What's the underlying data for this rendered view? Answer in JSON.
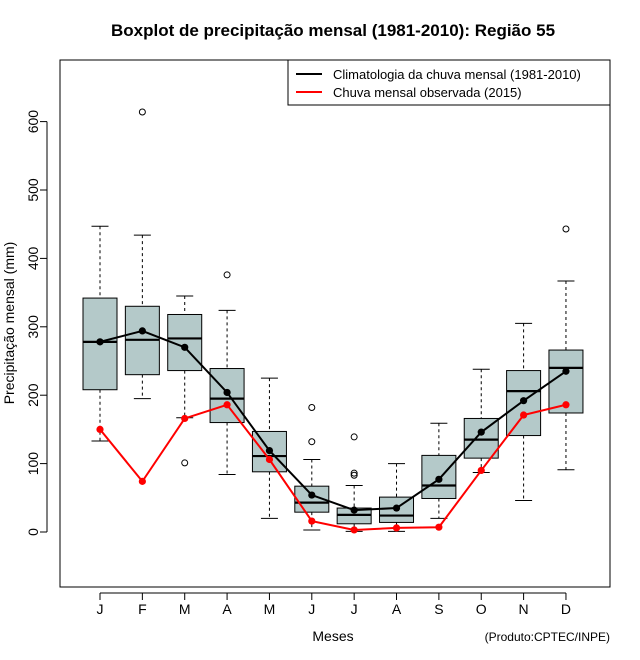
{
  "chart_data": {
    "type": "boxplot",
    "title": "Boxplot de precipitação mensal (1981-2010): Região 55",
    "xlabel": "Meses",
    "ylabel": "Precipitação mensal (mm)",
    "credit": "(Produto:CPTEC/INPE)",
    "ylim": [
      -80,
      690
    ],
    "yticks": [
      0,
      100,
      200,
      300,
      400,
      500,
      600
    ],
    "categories": [
      "J",
      "F",
      "M",
      "A",
      "M",
      "J",
      "J",
      "A",
      "S",
      "O",
      "N",
      "D"
    ],
    "boxes": [
      {
        "whisker_low": 133,
        "q1": 208,
        "median": 278,
        "q3": 342,
        "whisker_high": 447,
        "outliers": []
      },
      {
        "whisker_low": 195,
        "q1": 230,
        "median": 281,
        "q3": 330,
        "whisker_high": 434,
        "outliers": [
          614
        ]
      },
      {
        "whisker_low": 167,
        "q1": 236,
        "median": 283,
        "q3": 318,
        "whisker_high": 345,
        "outliers": [
          101
        ]
      },
      {
        "whisker_low": 84,
        "q1": 160,
        "median": 195,
        "q3": 239,
        "whisker_high": 324,
        "outliers": [
          376
        ]
      },
      {
        "whisker_low": 20,
        "q1": 88,
        "median": 111,
        "q3": 147,
        "whisker_high": 225,
        "outliers": []
      },
      {
        "whisker_low": 3,
        "q1": 29,
        "median": 43,
        "q3": 67,
        "whisker_high": 106,
        "outliers": [
          132,
          182
        ]
      },
      {
        "whisker_low": 1,
        "q1": 12,
        "median": 25,
        "q3": 35,
        "whisker_high": 68,
        "outliers": [
          83,
          86,
          139
        ]
      },
      {
        "whisker_low": 1,
        "q1": 14,
        "median": 24,
        "q3": 51,
        "whisker_high": 100,
        "outliers": []
      },
      {
        "whisker_low": 20,
        "q1": 49,
        "median": 68,
        "q3": 112,
        "whisker_high": 159,
        "outliers": []
      },
      {
        "whisker_low": 87,
        "q1": 108,
        "median": 135,
        "q3": 166,
        "whisker_high": 238,
        "outliers": []
      },
      {
        "whisker_low": 46,
        "q1": 141,
        "median": 206,
        "q3": 236,
        "whisker_high": 305,
        "outliers": []
      },
      {
        "whisker_low": 91,
        "q1": 174,
        "median": 240,
        "q3": 266,
        "whisker_high": 367,
        "outliers": [
          443
        ]
      }
    ],
    "series": [
      {
        "name": "Climatologia da chuva mensal (1981-2010)",
        "color": "#000000",
        "values": [
          278,
          294,
          270,
          204,
          119,
          54,
          32,
          35,
          77,
          146,
          192,
          235
        ]
      },
      {
        "name": "Chuva mensal observada (2015)",
        "color": "#ff0000",
        "values": [
          150,
          74,
          166,
          186,
          106,
          16,
          3,
          6,
          7,
          90,
          171,
          186
        ]
      }
    ],
    "legend_position": "top-right",
    "box_color": "#b4c9c9"
  }
}
